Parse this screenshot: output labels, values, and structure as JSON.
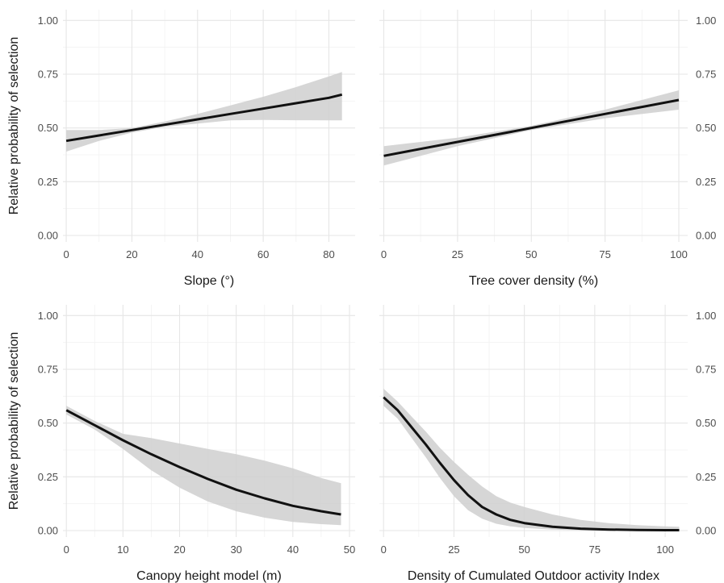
{
  "chart_data": [
    {
      "type": "line",
      "xlabel": "Slope (°)",
      "ylabel": "Relative probability of selection",
      "xlim": [
        -1,
        88
      ],
      "ylim": [
        -0.03,
        1.05
      ],
      "xticks": [
        0,
        20,
        40,
        60,
        80
      ],
      "yticks": [
        0,
        0.25,
        0.5,
        0.75,
        1
      ],
      "ytick_labels": [
        "0.00",
        "0.25",
        "0.50",
        "0.75",
        "1.00"
      ],
      "ytick_side": "left",
      "grid": true,
      "series": [
        {
          "x": [
            0,
            10,
            20,
            30,
            40,
            50,
            60,
            70,
            80,
            84
          ],
          "y": [
            0.44,
            0.465,
            0.49,
            0.515,
            0.54,
            0.565,
            0.59,
            0.615,
            0.64,
            0.655
          ],
          "ci_lower": [
            0.39,
            0.44,
            0.478,
            0.505,
            0.52,
            0.535,
            0.537,
            0.536,
            0.535,
            0.535
          ],
          "ci_upper": [
            0.49,
            0.49,
            0.5,
            0.53,
            0.565,
            0.605,
            0.645,
            0.69,
            0.74,
            0.76
          ]
        }
      ]
    },
    {
      "type": "line",
      "xlabel": "Tree cover density (%)",
      "ylabel": "",
      "xlim": [
        -1.5,
        103
      ],
      "ylim": [
        -0.03,
        1.05
      ],
      "xticks": [
        0,
        25,
        50,
        75,
        100
      ],
      "yticks": [
        0,
        0.25,
        0.5,
        0.75,
        1
      ],
      "ytick_labels": [
        "0.00",
        "0.25",
        "0.50",
        "0.75",
        "1.00"
      ],
      "ytick_side": "right",
      "grid": true,
      "series": [
        {
          "x": [
            0,
            25,
            50,
            75,
            100
          ],
          "y": [
            0.37,
            0.435,
            0.5,
            0.565,
            0.63
          ],
          "ci_lower": [
            0.325,
            0.415,
            0.49,
            0.545,
            0.585
          ],
          "ci_upper": [
            0.415,
            0.455,
            0.51,
            0.585,
            0.675
          ]
        }
      ]
    },
    {
      "type": "line",
      "xlabel": "Canopy height model (m)",
      "ylabel": "Relative probability of selection",
      "xlim": [
        -0.6,
        51
      ],
      "ylim": [
        -0.03,
        1.05
      ],
      "xticks": [
        0,
        10,
        20,
        30,
        40,
        50
      ],
      "yticks": [
        0,
        0.25,
        0.5,
        0.75,
        1
      ],
      "ytick_labels": [
        "0.00",
        "0.25",
        "0.50",
        "0.75",
        "1.00"
      ],
      "ytick_side": "left",
      "grid": true,
      "series": [
        {
          "x": [
            0,
            5,
            10,
            15,
            20,
            25,
            30,
            35,
            40,
            45,
            48.5
          ],
          "y": [
            0.56,
            0.49,
            0.42,
            0.355,
            0.295,
            0.24,
            0.19,
            0.15,
            0.115,
            0.09,
            0.075
          ],
          "ci_lower": [
            0.54,
            0.47,
            0.38,
            0.28,
            0.2,
            0.135,
            0.09,
            0.06,
            0.04,
            0.03,
            0.025
          ],
          "ci_upper": [
            0.58,
            0.51,
            0.45,
            0.43,
            0.405,
            0.38,
            0.355,
            0.325,
            0.29,
            0.245,
            0.22
          ]
        }
      ]
    },
    {
      "type": "line",
      "xlabel": "Density of Cumulated Outdoor activity Index",
      "ylabel": "",
      "xlim": [
        -1.5,
        108
      ],
      "ylim": [
        -0.03,
        1.05
      ],
      "xticks": [
        0,
        25,
        50,
        75,
        100
      ],
      "yticks": [
        0,
        0.25,
        0.5,
        0.75,
        1
      ],
      "ytick_labels": [
        "0.00",
        "0.25",
        "0.50",
        "0.75",
        "1.00"
      ],
      "ytick_side": "right",
      "grid": true,
      "series": [
        {
          "x": [
            0,
            5,
            10,
            15,
            20,
            25,
            30,
            35,
            40,
            45,
            50,
            60,
            70,
            80,
            90,
            100,
            105
          ],
          "y": [
            0.62,
            0.56,
            0.48,
            0.4,
            0.315,
            0.235,
            0.165,
            0.11,
            0.075,
            0.05,
            0.035,
            0.018,
            0.009,
            0.005,
            0.003,
            0.002,
            0.002
          ],
          "ci_lower": [
            0.58,
            0.52,
            0.43,
            0.34,
            0.245,
            0.16,
            0.095,
            0.055,
            0.032,
            0.02,
            0.012,
            0.005,
            0.002,
            0.001,
            0.0,
            0.0,
            0.0
          ],
          "ci_upper": [
            0.66,
            0.6,
            0.53,
            0.46,
            0.385,
            0.32,
            0.26,
            0.205,
            0.16,
            0.13,
            0.11,
            0.075,
            0.05,
            0.035,
            0.025,
            0.02,
            0.018
          ]
        }
      ]
    }
  ],
  "colors": {
    "line": "#111111",
    "ribbon": "#cfcfcf",
    "grid_major": "#e6e6e6",
    "grid_minor": "#f2f2f2",
    "tick_text": "#4d4d4d",
    "title_text": "#1a1a1a"
  }
}
